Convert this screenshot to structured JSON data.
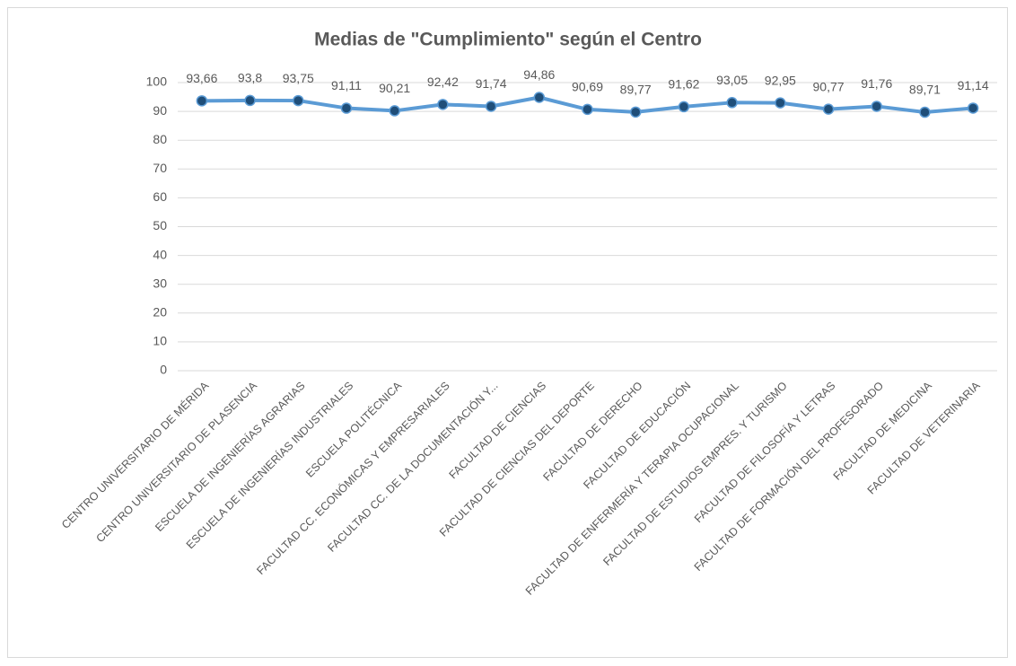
{
  "chart_data": {
    "type": "line",
    "title": "Medias de \"Cumplimiento\" según el Centro",
    "categories": [
      "CENTRO UNIVERSITARIO DE MÉRIDA",
      "CENTRO UNIVERSITARIO DE PLASENCIA",
      "ESCUELA DE INGENIERÍAS AGRARIAS",
      "ESCUELA DE INGENIERÍAS INDUSTRIALES",
      "ESCUELA POLITÉCNICA",
      "FACULTAD CC. ECONÓMICAS Y EMPRESARIALES",
      "FACULTAD CC. DE LA DOCUMENTACIÓN Y...",
      "FACULTAD DE CIENCIAS",
      "FACULTAD DE CIENCIAS DEL DEPORTE",
      "FACULTAD DE DERECHO",
      "FACULTAD DE EDUCACIÓN",
      "FACULTAD DE ENFERMERÍA Y TERAPIA OCUPACIONAL",
      "FACULTAD DE ESTUDIOS EMPRES. Y TURISMO",
      "FACULTAD DE FILOSOFÍA Y LETRAS",
      "FACULTAD DE FORMACIÓN DEL PROFESORADO",
      "FACULTAD DE MEDICINA",
      "FACULTAD DE VETERINARIA"
    ],
    "values": [
      93.66,
      93.8,
      93.75,
      91.11,
      90.21,
      92.42,
      91.74,
      94.86,
      90.69,
      89.77,
      91.62,
      93.05,
      92.95,
      90.77,
      91.76,
      89.71,
      91.14
    ],
    "value_labels": [
      "93,66",
      "93,8",
      "93,75",
      "91,11",
      "90,21",
      "92,42",
      "91,74",
      "94,86",
      "90,69",
      "89,77",
      "91,62",
      "93,05",
      "92,95",
      "90,77",
      "91,76",
      "89,71",
      "91,14"
    ],
    "color": "#5b9bd5",
    "marker_color": "#1f4e79",
    "ylim": [
      0,
      100
    ],
    "yticks": [
      0,
      10,
      20,
      30,
      40,
      50,
      60,
      70,
      80,
      90,
      100
    ],
    "grid": true
  }
}
